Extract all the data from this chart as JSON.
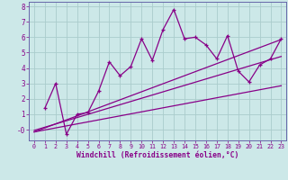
{
  "xlabel": "Windchill (Refroidissement éolien,°C)",
  "bg_color": "#cce8e8",
  "line_color": "#880088",
  "grid_color": "#aacccc",
  "spine_color": "#6666aa",
  "xlim": [
    -0.5,
    23.5
  ],
  "ylim": [
    -0.7,
    8.3
  ],
  "xticks": [
    0,
    1,
    2,
    3,
    4,
    5,
    6,
    7,
    8,
    9,
    10,
    11,
    12,
    13,
    14,
    15,
    16,
    17,
    18,
    19,
    20,
    21,
    22,
    23
  ],
  "yticks": [
    0,
    1,
    2,
    3,
    4,
    5,
    6,
    7,
    8
  ],
  "ytick_labels": [
    "-0",
    "1",
    "2",
    "3",
    "4",
    "5",
    "6",
    "7",
    "8"
  ],
  "scatter_x": [
    1,
    2,
    3,
    4,
    5,
    6,
    7,
    8,
    9,
    10,
    11,
    12,
    13,
    14,
    15,
    16,
    17,
    18,
    19,
    20,
    21,
    22,
    23
  ],
  "scatter_y": [
    1.4,
    3.0,
    -0.3,
    1.0,
    1.1,
    2.5,
    4.4,
    3.5,
    4.1,
    5.9,
    4.5,
    6.5,
    7.8,
    5.9,
    6.0,
    5.5,
    4.6,
    6.1,
    3.8,
    3.1,
    4.2,
    4.6,
    5.9
  ],
  "line1_x": [
    0,
    23
  ],
  "line1_y": [
    -0.15,
    5.85
  ],
  "line2_x": [
    0,
    23
  ],
  "line2_y": [
    -0.15,
    2.85
  ],
  "line3_x": [
    0,
    23
  ],
  "line3_y": [
    -0.05,
    4.75
  ]
}
